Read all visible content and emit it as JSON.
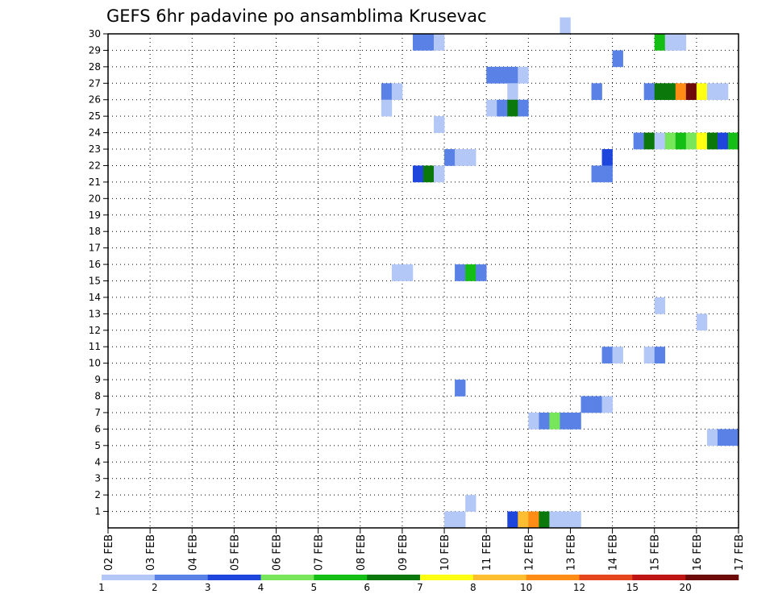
{
  "chart_data": {
    "type": "heatmap",
    "title": "GEFS 6hr padavine po ansamblima Krusevac",
    "xlabel": "",
    "ylabel": "",
    "x_tick_labels": [
      "02 FEB",
      "03 FEB",
      "04 FEB",
      "05 FEB",
      "06 FEB",
      "07 FEB",
      "08 FEB",
      "09 FEB",
      "10 FEB",
      "11 FEB",
      "12 FEB",
      "13 FEB",
      "14 FEB",
      "15 FEB",
      "16 FEB",
      "17 FEB"
    ],
    "x_steps_per_day": 4,
    "x_total_steps": 60,
    "y_tick_labels": [
      "1",
      "2",
      "3",
      "4",
      "5",
      "6",
      "7",
      "8",
      "9",
      "10",
      "11",
      "12",
      "13",
      "14",
      "15",
      "16",
      "17",
      "18",
      "19",
      "20",
      "21",
      "22",
      "23",
      "24",
      "25",
      "26",
      "27",
      "28",
      "29",
      "30"
    ],
    "y_range": [
      0,
      30
    ],
    "grid": true,
    "colorbar": {
      "labels": [
        "1",
        "2",
        "3",
        "4",
        "5",
        "6",
        "7",
        "8",
        "10",
        "12",
        "15",
        "20"
      ],
      "colors": [
        "#b4c8f8",
        "#5a82e6",
        "#1e46dc",
        "#78e65a",
        "#14be14",
        "#0a780a",
        "#ffff14",
        "#ffbe32",
        "#ff8c14",
        "#e6461e",
        "#be1414",
        "#6e0a0a"
      ]
    },
    "cells": [
      {
        "m": 30,
        "t": 43,
        "c": 0
      },
      {
        "m": 29,
        "t": 29,
        "c": 1
      },
      {
        "m": 29,
        "t": 30,
        "c": 1
      },
      {
        "m": 29,
        "t": 31,
        "c": 0
      },
      {
        "m": 29,
        "t": 52,
        "c": 4
      },
      {
        "m": 29,
        "t": 53,
        "c": 0
      },
      {
        "m": 29,
        "t": 54,
        "c": 0
      },
      {
        "m": 28,
        "t": 48,
        "c": 1
      },
      {
        "m": 27,
        "t": 36,
        "c": 1
      },
      {
        "m": 27,
        "t": 37,
        "c": 1
      },
      {
        "m": 27,
        "t": 38,
        "c": 1
      },
      {
        "m": 27,
        "t": 39,
        "c": 0
      },
      {
        "m": 26,
        "t": 26,
        "c": 1
      },
      {
        "m": 26,
        "t": 27,
        "c": 0
      },
      {
        "m": 26,
        "t": 38,
        "c": 0
      },
      {
        "m": 26,
        "t": 46,
        "c": 1
      },
      {
        "m": 26,
        "t": 51,
        "c": 1
      },
      {
        "m": 26,
        "t": 52,
        "c": 5
      },
      {
        "m": 26,
        "t": 53,
        "c": 5
      },
      {
        "m": 26,
        "t": 54,
        "c": 8
      },
      {
        "m": 26,
        "t": 55,
        "c": 11
      },
      {
        "m": 26,
        "t": 56,
        "c": 6
      },
      {
        "m": 26,
        "t": 57,
        "c": 0
      },
      {
        "m": 26,
        "t": 58,
        "c": 0
      },
      {
        "m": 25,
        "t": 26,
        "c": 0
      },
      {
        "m": 25,
        "t": 36,
        "c": 0
      },
      {
        "m": 25,
        "t": 37,
        "c": 1
      },
      {
        "m": 25,
        "t": 38,
        "c": 5
      },
      {
        "m": 25,
        "t": 39,
        "c": 1
      },
      {
        "m": 24,
        "t": 31,
        "c": 0
      },
      {
        "m": 23,
        "t": 50,
        "c": 1
      },
      {
        "m": 23,
        "t": 51,
        "c": 5
      },
      {
        "m": 23,
        "t": 52,
        "c": 0
      },
      {
        "m": 23,
        "t": 53,
        "c": 3
      },
      {
        "m": 23,
        "t": 54,
        "c": 4
      },
      {
        "m": 23,
        "t": 55,
        "c": 3
      },
      {
        "m": 23,
        "t": 56,
        "c": 6
      },
      {
        "m": 23,
        "t": 57,
        "c": 5
      },
      {
        "m": 23,
        "t": 58,
        "c": 2
      },
      {
        "m": 23,
        "t": 59,
        "c": 4
      },
      {
        "m": 22,
        "t": 32,
        "c": 1
      },
      {
        "m": 22,
        "t": 33,
        "c": 0
      },
      {
        "m": 22,
        "t": 34,
        "c": 0
      },
      {
        "m": 22,
        "t": 47,
        "c": 2
      },
      {
        "m": 21,
        "t": 29,
        "c": 2
      },
      {
        "m": 21,
        "t": 30,
        "c": 5
      },
      {
        "m": 21,
        "t": 31,
        "c": 0
      },
      {
        "m": 21,
        "t": 46,
        "c": 1
      },
      {
        "m": 21,
        "t": 47,
        "c": 1
      },
      {
        "m": 15,
        "t": 27,
        "c": 0
      },
      {
        "m": 15,
        "t": 28,
        "c": 0
      },
      {
        "m": 15,
        "t": 33,
        "c": 1
      },
      {
        "m": 15,
        "t": 34,
        "c": 4
      },
      {
        "m": 15,
        "t": 35,
        "c": 1
      },
      {
        "m": 13,
        "t": 52,
        "c": 0
      },
      {
        "m": 12,
        "t": 56,
        "c": 0
      },
      {
        "m": 10,
        "t": 47,
        "c": 1
      },
      {
        "m": 10,
        "t": 48,
        "c": 0
      },
      {
        "m": 10,
        "t": 51,
        "c": 0
      },
      {
        "m": 10,
        "t": 52,
        "c": 1
      },
      {
        "m": 8,
        "t": 33,
        "c": 1
      },
      {
        "m": 7,
        "t": 45,
        "c": 1
      },
      {
        "m": 7,
        "t": 46,
        "c": 1
      },
      {
        "m": 7,
        "t": 47,
        "c": 0
      },
      {
        "m": 6,
        "t": 40,
        "c": 0
      },
      {
        "m": 6,
        "t": 41,
        "c": 1
      },
      {
        "m": 6,
        "t": 42,
        "c": 3
      },
      {
        "m": 6,
        "t": 43,
        "c": 1
      },
      {
        "m": 6,
        "t": 44,
        "c": 1
      },
      {
        "m": 5,
        "t": 57,
        "c": 0
      },
      {
        "m": 5,
        "t": 58,
        "c": 1
      },
      {
        "m": 5,
        "t": 59,
        "c": 1
      },
      {
        "m": 1,
        "t": 34,
        "c": 0
      },
      {
        "m": 0,
        "t": 32,
        "c": 0
      },
      {
        "m": 0,
        "t": 33,
        "c": 0
      },
      {
        "m": 0,
        "t": 38,
        "c": 2
      },
      {
        "m": 0,
        "t": 39,
        "c": 7
      },
      {
        "m": 0,
        "t": 40,
        "c": 8
      },
      {
        "m": 0,
        "t": 41,
        "c": 5
      },
      {
        "m": 0,
        "t": 42,
        "c": 0
      },
      {
        "m": 0,
        "t": 43,
        "c": 0
      },
      {
        "m": 0,
        "t": 44,
        "c": 0
      }
    ]
  }
}
